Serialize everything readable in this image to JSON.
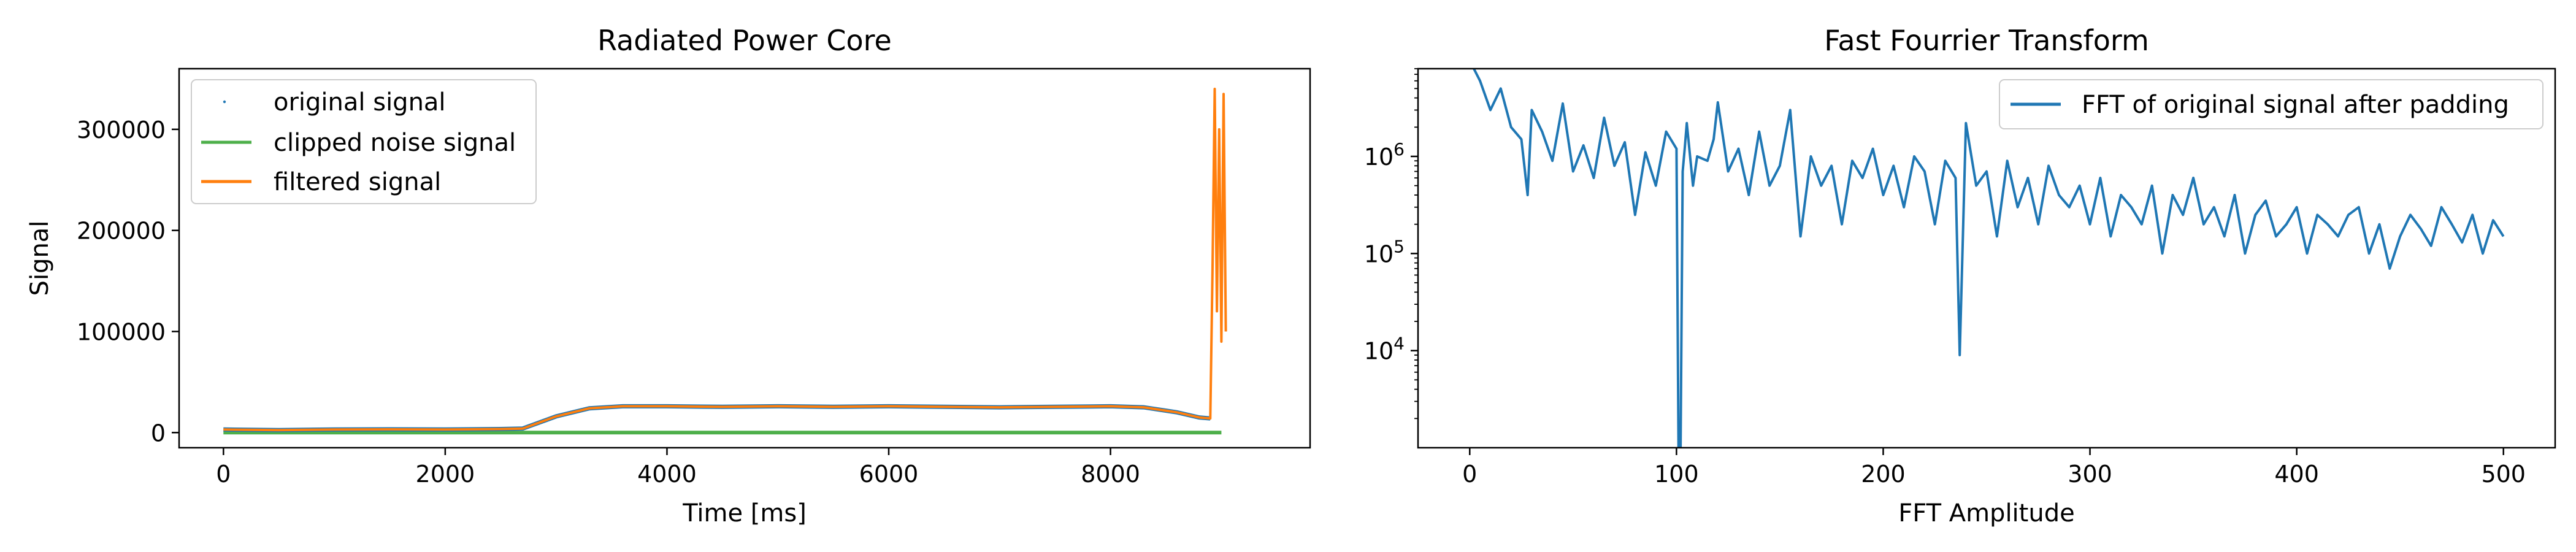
{
  "figure": {
    "background": "#ffffff"
  },
  "chart_data": [
    {
      "type": "line",
      "title": "Radiated Power Core",
      "xlabel": "Time [ms]",
      "ylabel": "Signal",
      "xlim": [
        -400,
        9800
      ],
      "ylim": [
        -15000,
        360000
      ],
      "xticks": [
        0,
        2000,
        4000,
        6000,
        8000
      ],
      "xtick_labels": [
        "0",
        "2000",
        "4000",
        "6000",
        "8000"
      ],
      "yticks": [
        0,
        100000,
        200000,
        300000
      ],
      "ytick_labels": [
        "0",
        "100000",
        "200000",
        "300000"
      ],
      "grid": false,
      "legend": {
        "placement": "top-left",
        "entries": [
          "original signal",
          "clipped noise signal",
          "filtered signal"
        ]
      },
      "series": [
        {
          "name": "original signal",
          "style": "points",
          "color": "#1f77b4",
          "x": [
            0,
            500,
            1000,
            1500,
            2000,
            2500,
            2700,
            3000,
            3300,
            3600,
            4000,
            4500,
            5000,
            5500,
            6000,
            6500,
            7000,
            7500,
            8000,
            8300,
            8600,
            8800,
            8900
          ],
          "y": [
            3000,
            2500,
            3000,
            3200,
            3000,
            3500,
            4000,
            16000,
            24000,
            26000,
            26000,
            25500,
            26000,
            25500,
            26000,
            25500,
            25000,
            25500,
            26000,
            25000,
            20000,
            15000,
            14000
          ]
        },
        {
          "name": "clipped noise signal",
          "style": "line",
          "color": "#4daf4a",
          "x": [
            0,
            1000,
            2000,
            3000,
            4000,
            5000,
            6000,
            7000,
            8000,
            9000
          ],
          "y": [
            0,
            0,
            0,
            0,
            0,
            0,
            0,
            0,
            0,
            0
          ]
        },
        {
          "name": "filtered signal",
          "style": "line",
          "color": "#ff7f0e",
          "x": [
            0,
            500,
            1000,
            1500,
            2000,
            2500,
            2700,
            3000,
            3300,
            3600,
            4000,
            4500,
            5000,
            5500,
            6000,
            6500,
            7000,
            7500,
            8000,
            8300,
            8600,
            8800,
            8900,
            8920,
            8940,
            8960,
            8980,
            9000,
            9020,
            9040
          ],
          "y": [
            3000,
            2500,
            3000,
            3200,
            3000,
            3500,
            4000,
            16000,
            24000,
            26000,
            26000,
            25500,
            26000,
            25500,
            26000,
            25500,
            25000,
            25500,
            26000,
            25000,
            20000,
            15000,
            14000,
            160000,
            340000,
            120000,
            300000,
            90000,
            335000,
            100000
          ]
        }
      ]
    },
    {
      "type": "line",
      "title": "Fast Fourrier Transform",
      "xlabel": "FFT Amplitude",
      "ylabel": "",
      "xlim": [
        -25,
        525
      ],
      "ylim": [
        1000,
        8000000
      ],
      "yscale": "log",
      "xticks": [
        0,
        100,
        200,
        300,
        400,
        500
      ],
      "xtick_labels": [
        "0",
        "100",
        "200",
        "300",
        "400",
        "500"
      ],
      "yticks": [
        10000,
        100000,
        1000000
      ],
      "ytick_base": "10",
      "ytick_exponents": [
        "4",
        "5",
        "6"
      ],
      "grid": false,
      "legend": {
        "placement": "top-right",
        "entries": [
          "FFT of original signal after padding"
        ]
      },
      "series": [
        {
          "name": "FFT of original signal after padding",
          "color": "#1f77b4",
          "x": [
            2,
            5,
            10,
            15,
            20,
            25,
            28,
            30,
            35,
            40,
            45,
            50,
            55,
            60,
            65,
            70,
            75,
            80,
            85,
            90,
            95,
            100,
            101,
            102,
            103,
            104,
            105,
            108,
            110,
            115,
            118,
            120,
            125,
            130,
            135,
            140,
            145,
            150,
            155,
            160,
            165,
            170,
            175,
            180,
            185,
            190,
            195,
            200,
            205,
            210,
            215,
            220,
            225,
            230,
            235,
            237,
            240,
            245,
            250,
            255,
            260,
            265,
            270,
            275,
            280,
            285,
            290,
            295,
            300,
            305,
            310,
            315,
            320,
            325,
            330,
            335,
            340,
            345,
            350,
            355,
            360,
            365,
            370,
            375,
            380,
            385,
            390,
            395,
            400,
            405,
            410,
            415,
            420,
            425,
            430,
            435,
            440,
            445,
            450,
            455,
            460,
            465,
            470,
            475,
            480,
            485,
            490,
            495,
            500
          ],
          "y": [
            8000000,
            6000000,
            3000000,
            5000000,
            2000000,
            1500000,
            400000,
            3000000,
            1800000,
            900000,
            3500000,
            700000,
            1300000,
            600000,
            2500000,
            800000,
            1400000,
            250000,
            1100000,
            500000,
            1800000,
            1200000,
            1000,
            1000,
            700000,
            1200000,
            2200000,
            500000,
            1000000,
            900000,
            1500000,
            3600000,
            700000,
            1200000,
            400000,
            1800000,
            500000,
            800000,
            3000000,
            150000,
            1000000,
            500000,
            800000,
            200000,
            900000,
            600000,
            1200000,
            400000,
            800000,
            300000,
            1000000,
            700000,
            200000,
            900000,
            600000,
            9000,
            2200000,
            500000,
            700000,
            150000,
            900000,
            300000,
            600000,
            200000,
            800000,
            400000,
            300000,
            500000,
            200000,
            600000,
            150000,
            400000,
            300000,
            200000,
            500000,
            100000,
            400000,
            250000,
            600000,
            200000,
            300000,
            150000,
            400000,
            100000,
            250000,
            350000,
            150000,
            200000,
            300000,
            100000,
            250000,
            200000,
            150000,
            250000,
            300000,
            100000,
            200000,
            70000,
            150000,
            250000,
            180000,
            120000,
            300000,
            200000,
            130000,
            250000,
            100000,
            220000,
            150000
          ]
        }
      ]
    }
  ]
}
